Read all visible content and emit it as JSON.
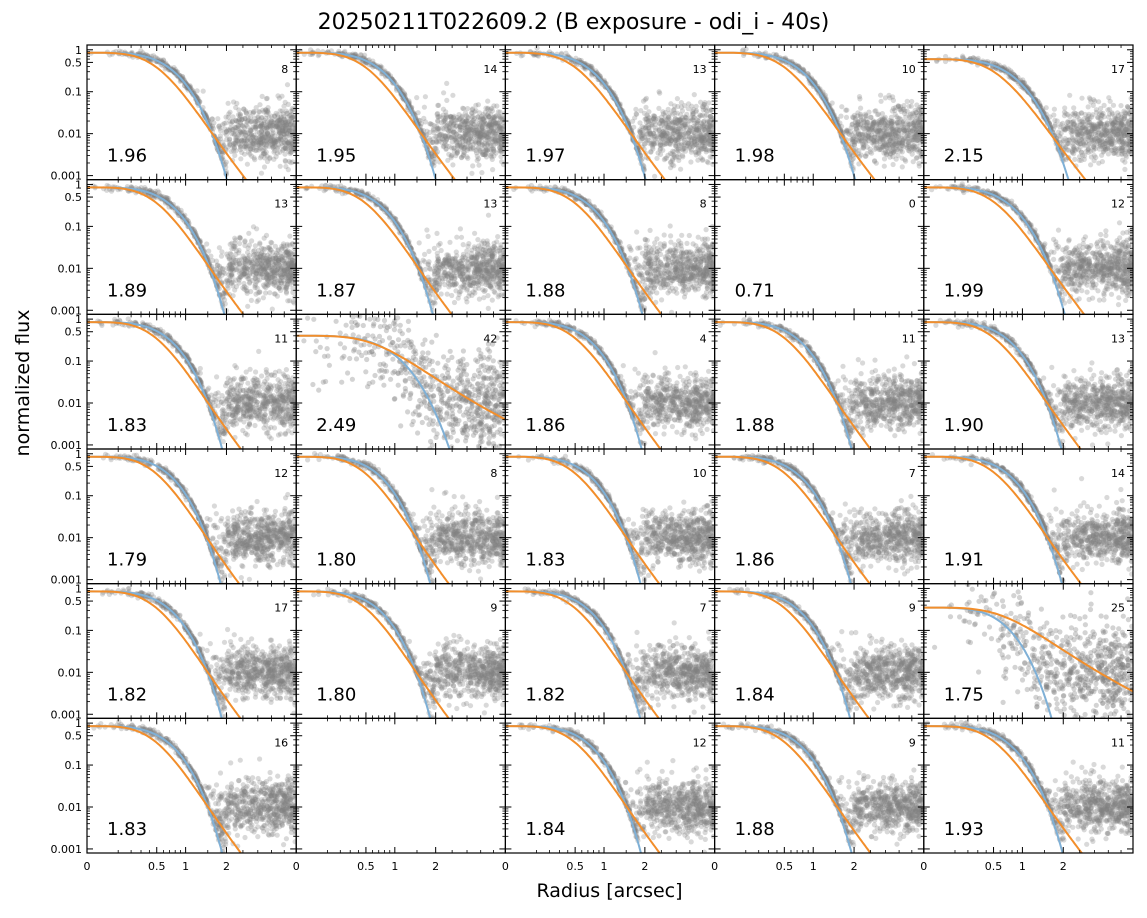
{
  "chart_data": {
    "type": "scatter",
    "title": "20250211T022609.2 (B exposure - odi_i - 40s)",
    "xlabel": "Radius [arcsec]",
    "ylabel": "normalized flux",
    "layout": {
      "rows": 6,
      "cols": 5
    },
    "x_scale": "sqrt",
    "y_scale": "log",
    "xlim": [
      0,
      4.5
    ],
    "ylim": [
      0.0008,
      1.3
    ],
    "x_ticks": [
      0,
      0.5,
      1,
      2
    ],
    "x_tick_labels": [
      "0",
      "0.5",
      "1",
      "2"
    ],
    "y_ticks": [
      1,
      0.5,
      0.1,
      0.01,
      0.001
    ],
    "y_tick_labels": [
      "1",
      "0.5",
      "0.1",
      "0.01",
      "0.001"
    ],
    "series_colors": {
      "points": "#808080",
      "gaussian_fit": "#7fb0d6",
      "moffat_fit": "#f28e2b"
    },
    "panels": [
      {
        "fwhm": "1.96",
        "count": "8"
      },
      {
        "fwhm": "1.95",
        "count": "14"
      },
      {
        "fwhm": "1.97",
        "count": "13"
      },
      {
        "fwhm": "1.98",
        "count": "10"
      },
      {
        "fwhm": "2.15",
        "count": "17"
      },
      {
        "fwhm": "1.89",
        "count": "13"
      },
      {
        "fwhm": "1.87",
        "count": "13"
      },
      {
        "fwhm": "1.88",
        "count": "8"
      },
      {
        "fwhm": "0.71",
        "count": "0",
        "empty": true
      },
      {
        "fwhm": "1.99",
        "count": "12"
      },
      {
        "fwhm": "1.83",
        "count": "11"
      },
      {
        "fwhm": "2.49",
        "count": "42"
      },
      {
        "fwhm": "1.86",
        "count": "4"
      },
      {
        "fwhm": "1.88",
        "count": "11"
      },
      {
        "fwhm": "1.90",
        "count": "13"
      },
      {
        "fwhm": "1.79",
        "count": "12"
      },
      {
        "fwhm": "1.80",
        "count": "8"
      },
      {
        "fwhm": "1.83",
        "count": "10"
      },
      {
        "fwhm": "1.86",
        "count": "7"
      },
      {
        "fwhm": "1.91",
        "count": "14"
      },
      {
        "fwhm": "1.82",
        "count": "17"
      },
      {
        "fwhm": "1.80",
        "count": "9"
      },
      {
        "fwhm": "1.82",
        "count": "7"
      },
      {
        "fwhm": "1.84",
        "count": "9"
      },
      {
        "fwhm": "1.75",
        "count": "25"
      },
      {
        "fwhm": "1.83",
        "count": "16"
      },
      {
        "fwhm": "",
        "count": "",
        "empty": true,
        "no_labels": true
      },
      {
        "fwhm": "1.84",
        "count": "12"
      },
      {
        "fwhm": "1.88",
        "count": "9"
      },
      {
        "fwhm": "1.93",
        "count": "11"
      }
    ]
  }
}
